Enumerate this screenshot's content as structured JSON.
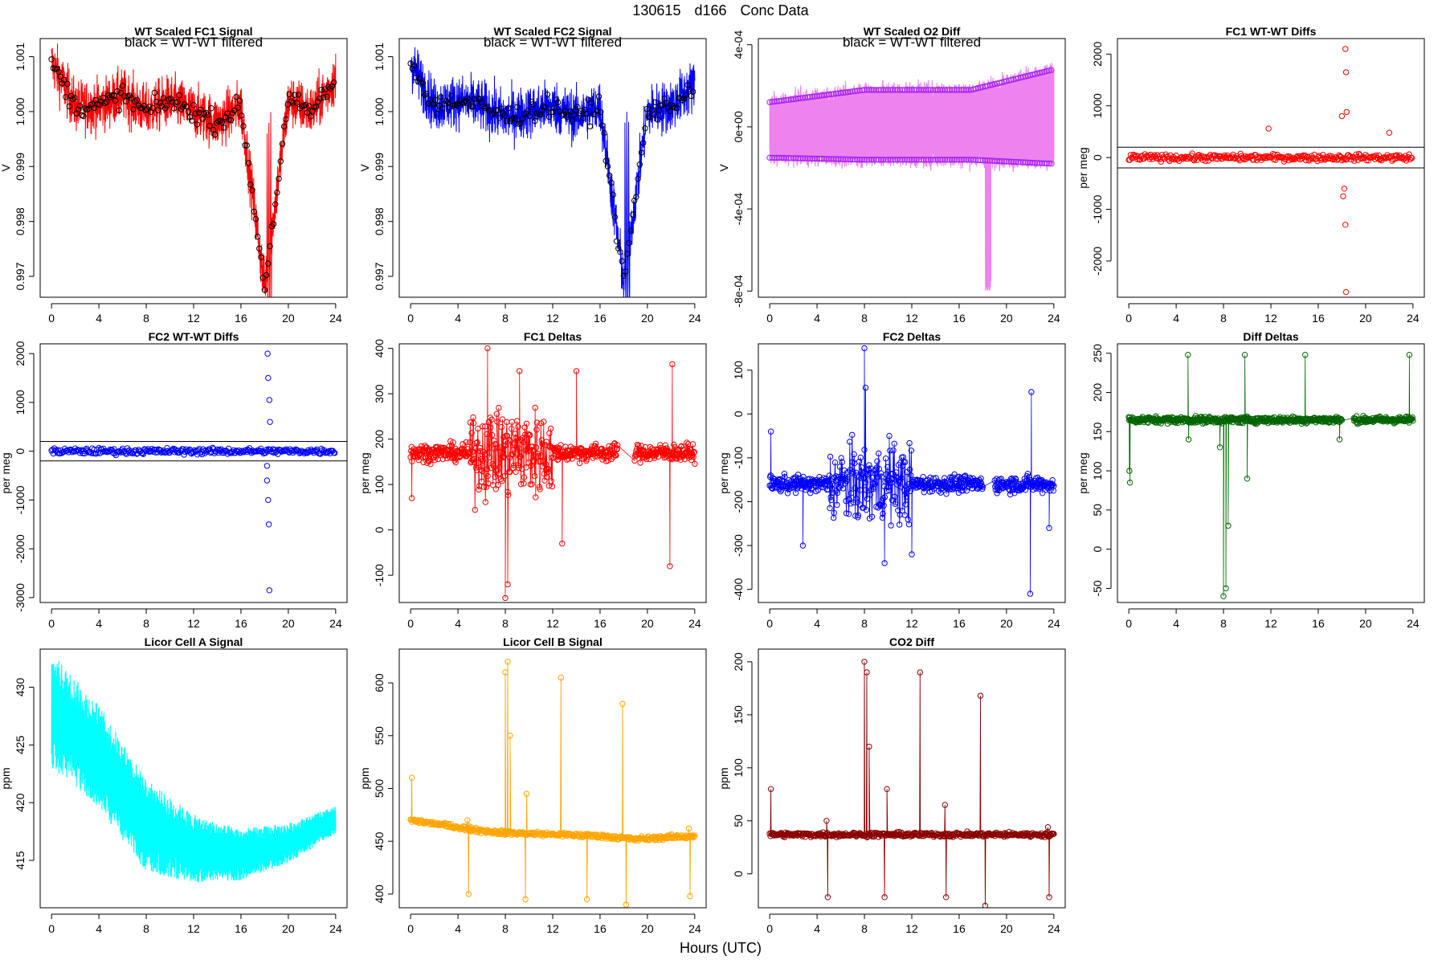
{
  "page": {
    "title_parts": [
      "130615",
      "d166",
      "Conc Data"
    ],
    "x_label": "Hours (UTC)"
  },
  "chart_data": [
    {
      "id": "p1",
      "type": "line",
      "title": "WT Scaled FC1 Signal",
      "note": "black = WT-WT filtered",
      "xlabel": "",
      "ylabel": "V",
      "xlim": [
        0,
        24
      ],
      "ylim": [
        0.99662,
        1.00133
      ],
      "xticks": [
        0,
        4,
        8,
        12,
        16,
        20,
        24
      ],
      "yticks": [
        0.997,
        0.998,
        0.999,
        1.0,
        1.001
      ],
      "ytick_labels": [
        "0.997",
        "0.998",
        "0.999",
        "1.000",
        "1.001"
      ],
      "color": "#ff0000",
      "marker_color": "#000000",
      "data": {
        "kind": "signal",
        "base": 1.0,
        "amp": 0.00045,
        "spike": [
          18.2,
          18.6,
          -0.0035
        ],
        "x": [
          0,
          2,
          4,
          6,
          8,
          10,
          12,
          14,
          16,
          18,
          20,
          22,
          24
        ],
        "y": [
          1.0009,
          1.0001,
          1.0001,
          1.0003,
          1.0,
          1.0002,
          1.0,
          0.9998,
          1.0001,
          0.9968,
          1.0002,
          1.0,
          1.0006
        ]
      }
    },
    {
      "id": "p2",
      "type": "line",
      "title": "WT Scaled FC2 Signal",
      "note": "black = WT-WT filtered",
      "xlabel": "",
      "ylabel": "V",
      "xlim": [
        0,
        24
      ],
      "ylim": [
        0.99662,
        1.00133
      ],
      "xticks": [
        0,
        4,
        8,
        12,
        16,
        20,
        24
      ],
      "yticks": [
        0.997,
        0.998,
        0.999,
        1.0,
        1.001
      ],
      "ytick_labels": [
        "0.997",
        "0.998",
        "0.999",
        "1.000",
        "1.001"
      ],
      "color": "#0000ff",
      "marker_color": "#000000",
      "data": {
        "kind": "signal",
        "base": 1.0,
        "amp": 0.00045,
        "spike": [
          18.1,
          18.5,
          -0.0035
        ],
        "x": [
          0,
          2,
          4,
          6,
          8,
          10,
          12,
          14,
          16,
          18,
          20,
          22,
          24
        ],
        "y": [
          1.0009,
          1.0001,
          1.0002,
          1.0001,
          0.9999,
          1.0,
          1.0001,
          0.9999,
          1.0001,
          0.9969,
          1.0,
          1.0001,
          1.0005
        ]
      }
    },
    {
      "id": "p3",
      "type": "line",
      "title": "WT Scaled O2 Diff",
      "note": "black = WT-WT filtered",
      "xlabel": "",
      "ylabel": "V",
      "xlim": [
        0,
        24
      ],
      "ylim": [
        -0.00083,
        0.00043
      ],
      "xticks": [
        0,
        4,
        8,
        12,
        16,
        20,
        24
      ],
      "yticks": [
        -0.0008,
        -0.0004,
        0.0,
        0.0004
      ],
      "ytick_labels": [
        "-8e-04",
        "-4e-04",
        "0e+00",
        "4e-04"
      ],
      "color": "#ee82ee",
      "marker_color": "#a020f0",
      "data": {
        "kind": "bands",
        "upper": [
          [
            0,
            0.00012
          ],
          [
            8,
            0.00018
          ],
          [
            17,
            0.00018
          ],
          [
            24,
            0.00028
          ]
        ],
        "lower": [
          [
            0,
            -0.00015
          ],
          [
            8,
            -0.00016
          ],
          [
            17,
            -0.00016
          ],
          [
            24,
            -0.00018
          ]
        ],
        "spike": [
          18.2,
          18.7,
          -0.0008
        ]
      }
    },
    {
      "id": "p4",
      "type": "scatter",
      "title": "FC1 WT-WT Diffs",
      "xlabel": "",
      "ylabel": "per meg",
      "xlim": [
        0,
        24
      ],
      "ylim": [
        -2700,
        2300
      ],
      "xticks": [
        0,
        4,
        8,
        12,
        16,
        20,
        24
      ],
      "yticks": [
        -2000,
        -1000,
        0,
        1000,
        2000
      ],
      "ytick_labels": [
        "-2000",
        "-1000",
        "0",
        "1000",
        "2000"
      ],
      "color": "#ff0000",
      "hlines": [
        200,
        -200
      ],
      "outliers": [
        [
          18.0,
          800
        ],
        [
          18.3,
          2100
        ],
        [
          18.35,
          1650
        ],
        [
          18.4,
          880
        ],
        [
          18.2,
          -600
        ],
        [
          18.3,
          -1300
        ],
        [
          18.35,
          -2600
        ],
        [
          18.1,
          -750
        ],
        [
          22.0,
          480
        ],
        [
          11.8,
          560
        ]
      ]
    },
    {
      "id": "p5",
      "type": "scatter",
      "title": "FC2 WT-WT Diffs",
      "xlabel": "",
      "ylabel": "per meg",
      "xlim": [
        0,
        24
      ],
      "ylim": [
        -3100,
        2200
      ],
      "xticks": [
        0,
        4,
        8,
        12,
        16,
        20,
        24
      ],
      "yticks": [
        -3000,
        -2000,
        -1000,
        0,
        1000,
        2000
      ],
      "ytick_labels": [
        "-3000",
        "-2000",
        "-1000",
        "0",
        "1000",
        "2000"
      ],
      "color": "#0000ff",
      "hlines": [
        200,
        -200
      ],
      "outliers": [
        [
          18.25,
          2000
        ],
        [
          18.3,
          1500
        ],
        [
          18.4,
          1050
        ],
        [
          18.45,
          600
        ],
        [
          18.2,
          -300
        ],
        [
          18.3,
          -1000
        ],
        [
          18.35,
          -1500
        ],
        [
          18.4,
          -2850
        ],
        [
          18.2,
          -600
        ]
      ]
    },
    {
      "id": "p6",
      "type": "line",
      "title": "FC1 Deltas",
      "xlabel": "",
      "ylabel": "per meg",
      "xlim": [
        0,
        24
      ],
      "ylim": [
        -160,
        410
      ],
      "xticks": [
        0,
        4,
        8,
        12,
        16,
        20,
        24
      ],
      "yticks": [
        -100,
        0,
        100,
        200,
        300,
        400
      ],
      "ytick_labels": [
        "-100",
        "0",
        "100",
        "200",
        "300",
        "400"
      ],
      "color": "#ff0000",
      "marker": true,
      "data": {
        "kind": "noisy",
        "base": 170,
        "noise": 18,
        "gap": [
          17.5,
          18.9
        ],
        "events": [
          [
            6.5,
            400
          ],
          [
            8.0,
            -150
          ],
          [
            8.2,
            -120
          ],
          [
            9.2,
            350
          ],
          [
            12.8,
            -30
          ],
          [
            14.0,
            350
          ],
          [
            21.9,
            -80
          ],
          [
            22.1,
            365
          ],
          [
            0.1,
            70
          ]
        ],
        "wild": [
          [
            5,
            12,
            90
          ]
        ]
      }
    },
    {
      "id": "p7",
      "type": "line",
      "title": "FC2 Deltas",
      "xlabel": "",
      "ylabel": "per meg",
      "xlim": [
        0,
        24
      ],
      "ylim": [
        -430,
        160
      ],
      "xticks": [
        0,
        4,
        8,
        12,
        16,
        20,
        24
      ],
      "yticks": [
        -400,
        -300,
        -200,
        -100,
        0,
        100
      ],
      "ytick_labels": [
        "-400",
        "-300",
        "-200",
        "-100",
        "0",
        "100"
      ],
      "color": "#0000ff",
      "marker": true,
      "data": {
        "kind": "noisy",
        "base": -160,
        "noise": 18,
        "gap": [
          18.0,
          19.0
        ],
        "events": [
          [
            0.1,
            -40
          ],
          [
            8.0,
            150
          ],
          [
            8.1,
            60
          ],
          [
            9.7,
            -340
          ],
          [
            10.1,
            -50
          ],
          [
            12.0,
            -320
          ],
          [
            22.0,
            -410
          ],
          [
            22.1,
            50
          ],
          [
            2.8,
            -300
          ],
          [
            23.6,
            -260
          ]
        ],
        "wild": [
          [
            5,
            12,
            80
          ]
        ]
      }
    },
    {
      "id": "p8",
      "type": "line",
      "title": "Diff Deltas",
      "xlabel": "",
      "ylabel": "per meg",
      "xlim": [
        0,
        24
      ],
      "ylim": [
        -68,
        262
      ],
      "xticks": [
        0,
        4,
        8,
        12,
        16,
        20,
        24
      ],
      "yticks": [
        -50,
        0,
        50,
        100,
        150,
        200,
        250
      ],
      "ytick_labels": [
        "-50",
        "0",
        "50",
        "100",
        "150",
        "200",
        "250"
      ],
      "color": "#006400",
      "marker": true,
      "data": {
        "kind": "noisy",
        "base": 165,
        "noise": 4,
        "gap": [
          18.0,
          19.0
        ],
        "events": [
          [
            0.1,
            85
          ],
          [
            0.05,
            100
          ],
          [
            5.0,
            248
          ],
          [
            5.05,
            140
          ],
          [
            8.0,
            -60
          ],
          [
            8.2,
            -50
          ],
          [
            8.4,
            30
          ],
          [
            9.8,
            248
          ],
          [
            10.0,
            90
          ],
          [
            14.9,
            248
          ],
          [
            23.7,
            248
          ],
          [
            7.7,
            130
          ],
          [
            17.8,
            140
          ]
        ],
        "wild": []
      }
    },
    {
      "id": "p9",
      "type": "line",
      "title": "Licor Cell A Signal",
      "xlabel": "",
      "ylabel": "ppm",
      "xlim": [
        0,
        24
      ],
      "ylim": [
        410.9,
        433.3
      ],
      "xticks": [
        0,
        4,
        8,
        12,
        16,
        20,
        24
      ],
      "yticks": [
        415,
        420,
        425,
        430
      ],
      "ytick_labels": [
        "415",
        "420",
        "425",
        "430"
      ],
      "color": "#00ffff",
      "data": {
        "kind": "band",
        "center": [
          [
            0,
            428
          ],
          [
            4,
            424
          ],
          [
            8,
            418
          ],
          [
            12,
            416
          ],
          [
            16,
            415.5
          ],
          [
            20,
            416.5
          ],
          [
            24,
            418.5
          ]
        ],
        "halfwidth": [
          [
            0,
            5
          ],
          [
            8,
            4
          ],
          [
            14,
            2.5
          ],
          [
            24,
            1.2
          ]
        ]
      }
    },
    {
      "id": "p10",
      "type": "line",
      "title": "Licor Cell B Signal",
      "xlabel": "",
      "ylabel": "ppm",
      "xlim": [
        0,
        24
      ],
      "ylim": [
        387,
        632
      ],
      "xticks": [
        0,
        4,
        8,
        12,
        16,
        20,
        24
      ],
      "yticks": [
        400,
        450,
        500,
        550,
        600
      ],
      "ytick_labels": [
        "400",
        "450",
        "500",
        "550",
        "600"
      ],
      "color": "#ffa500",
      "marker": true,
      "data": {
        "kind": "baseline",
        "base": [
          [
            0,
            470
          ],
          [
            6,
            460
          ],
          [
            8,
            458
          ],
          [
            16,
            455
          ],
          [
            19,
            452
          ],
          [
            24,
            455
          ]
        ],
        "events": [
          [
            0.1,
            510
          ],
          [
            4.9,
            400
          ],
          [
            4.8,
            470
          ],
          [
            8.0,
            610
          ],
          [
            8.2,
            620
          ],
          [
            8.4,
            550
          ],
          [
            9.7,
            395
          ],
          [
            9.8,
            495
          ],
          [
            12.7,
            605
          ],
          [
            14.9,
            395
          ],
          [
            17.9,
            580
          ],
          [
            18.2,
            390
          ],
          [
            23.6,
            398
          ],
          [
            23.5,
            462
          ]
        ]
      }
    },
    {
      "id": "p11",
      "type": "line",
      "title": "CO2 Diff",
      "xlabel": "",
      "ylabel": "ppm",
      "xlim": [
        0,
        24
      ],
      "ylim": [
        -32,
        212
      ],
      "xticks": [
        0,
        4,
        8,
        12,
        16,
        20,
        24
      ],
      "yticks": [
        0,
        50,
        100,
        150,
        200
      ],
      "ytick_labels": [
        "0",
        "50",
        "100",
        "150",
        "200"
      ],
      "color": "#8b0000",
      "marker": true,
      "data": {
        "kind": "baseline",
        "base": [
          [
            0,
            37
          ],
          [
            24,
            37
          ]
        ],
        "events": [
          [
            0.1,
            80
          ],
          [
            4.9,
            -22
          ],
          [
            4.8,
            50
          ],
          [
            8.0,
            200
          ],
          [
            8.2,
            190
          ],
          [
            8.4,
            120
          ],
          [
            9.7,
            -22
          ],
          [
            9.9,
            80
          ],
          [
            12.7,
            190
          ],
          [
            14.9,
            -22
          ],
          [
            14.8,
            65
          ],
          [
            17.8,
            168
          ],
          [
            18.2,
            -30
          ],
          [
            23.6,
            -22
          ],
          [
            23.5,
            44
          ]
        ]
      }
    }
  ]
}
